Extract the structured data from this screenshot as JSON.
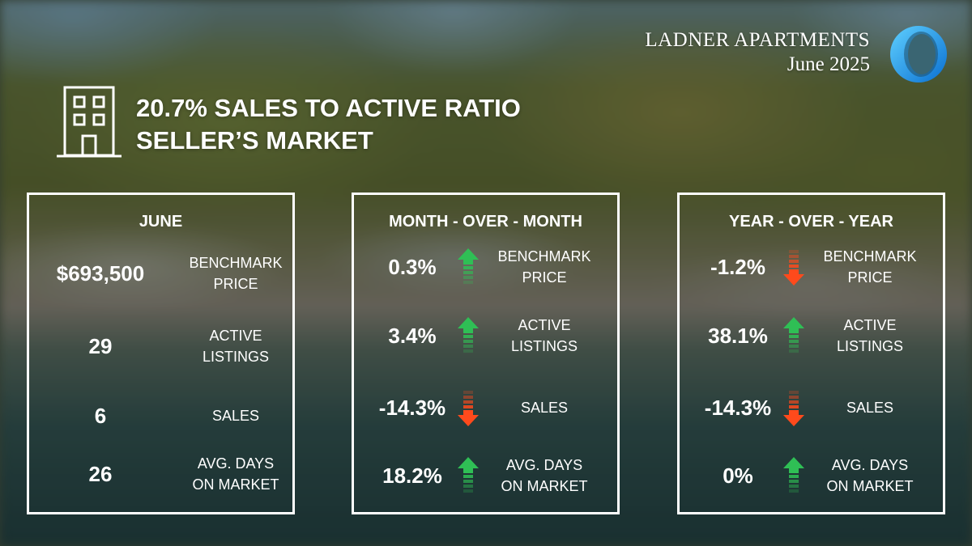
{
  "brand": {
    "title": "LADNER APARTMENTS",
    "date": "June 2025",
    "logo_icon": "ring-logo-icon"
  },
  "hero": {
    "icon": "building-icon",
    "line1": "20.7% SALES TO ACTIVE RATIO",
    "line2": "SELLER’S MARKET"
  },
  "colors": {
    "up": "#2fbf55",
    "down": "#ff4a1c",
    "text": "#ffffff"
  },
  "june": {
    "title": "JUNE",
    "rows": [
      {
        "value": "$693,500",
        "label_line1": "BENCHMARK",
        "label_line2": "PRICE"
      },
      {
        "value": "29",
        "label_line1": "ACTIVE",
        "label_line2": "LISTINGS"
      },
      {
        "value": "6",
        "label_line1": "SALES",
        "label_line2": ""
      },
      {
        "value": "26",
        "label_line1": "AVG. DAYS",
        "label_line2": "ON MARKET"
      }
    ]
  },
  "mom": {
    "title": "MONTH - OVER - MONTH",
    "rows": [
      {
        "value": "0.3%",
        "direction": "up",
        "label_line1": "BENCHMARK",
        "label_line2": "PRICE"
      },
      {
        "value": "3.4%",
        "direction": "up",
        "label_line1": "ACTIVE",
        "label_line2": "LISTINGS"
      },
      {
        "value": "-14.3%",
        "direction": "down",
        "label_line1": "SALES",
        "label_line2": ""
      },
      {
        "value": "18.2%",
        "direction": "up",
        "label_line1": "AVG. DAYS",
        "label_line2": "ON MARKET"
      }
    ]
  },
  "yoy": {
    "title": "YEAR - OVER - YEAR",
    "rows": [
      {
        "value": "-1.2%",
        "direction": "down",
        "label_line1": "BENCHMARK",
        "label_line2": "PRICE"
      },
      {
        "value": "38.1%",
        "direction": "up",
        "label_line1": "ACTIVE",
        "label_line2": "LISTINGS"
      },
      {
        "value": "-14.3%",
        "direction": "down",
        "label_line1": "SALES",
        "label_line2": ""
      },
      {
        "value": "0%",
        "direction": "up",
        "label_line1": "AVG. DAYS",
        "label_line2": "ON MARKET"
      }
    ]
  }
}
